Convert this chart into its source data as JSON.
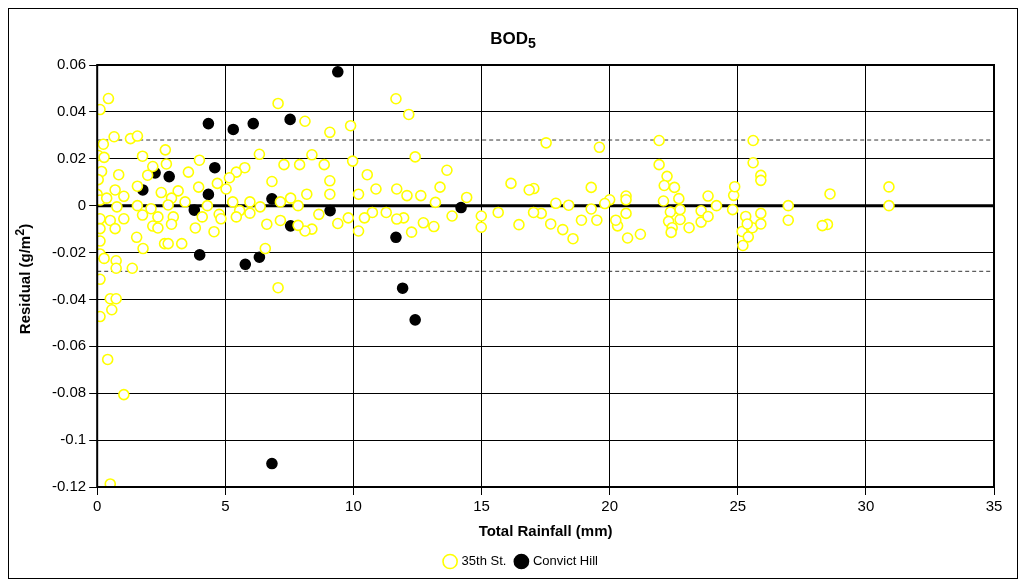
{
  "chart_data": {
    "type": "scatter",
    "title": "BOD$_{5}$",
    "xlabel": "Total Rainfall (mm)",
    "ylabel": "Residual (g/m$^{2}$)",
    "xlim": [
      0,
      35
    ],
    "xticks": [
      0,
      5,
      10,
      15,
      20,
      25,
      30,
      35
    ],
    "ylim": [
      -0.12,
      0.06
    ],
    "yticks": [
      -0.12,
      -0.1,
      -0.08,
      -0.06,
      -0.04,
      -0.02,
      0,
      0.02,
      0.04,
      0.06
    ],
    "grid": true,
    "legend": "bottom",
    "marker": "circle",
    "ref_lines": [
      {
        "axis": "y",
        "value": 0,
        "color": "#000000",
        "line_style": "solid"
      },
      {
        "axis": "y",
        "value": 0.028,
        "color": "#000000",
        "line_style": "dashed"
      },
      {
        "axis": "y",
        "value": -0.028,
        "color": "#000000",
        "line_style": "dashed"
      }
    ],
    "series": [
      {
        "name": "35th St.",
        "color": "#ffff00",
        "x": [
          17.52,
          19.6,
          21.93,
          21.93,
          22.24,
          22.13,
          22.53,
          22.7,
          22.1,
          22.37,
          22.3,
          22.44,
          22.4,
          22.75,
          22.75,
          23.1,
          23.57,
          23.57,
          23.84,
          23.84,
          24.17,
          24.8,
          24.84,
          24.88,
          25.31,
          25.17,
          25.2,
          25.41,
          25.57,
          25.37,
          25.6,
          25.6,
          25.9,
          25.9,
          25.9,
          25.9,
          20,
          20.64,
          20.64,
          20.64,
          20.31,
          20.24,
          20.7,
          21.2,
          19.81,
          19.5,
          19.28,
          19.28,
          18.9,
          18.57,
          18.17,
          18.4,
          17.9,
          17.7,
          17.33,
          17.04,
          26.97,
          26.97,
          28.5,
          28.3,
          28.6,
          30.9,
          30.9,
          11.66,
          12.16,
          8.11,
          9.08,
          9.89,
          12.41,
          9.97,
          8.38,
          10.54,
          13.65,
          13.38,
          16.15,
          16.86,
          9.08,
          9.08,
          10.88,
          10.2,
          11.69,
          12.09,
          12.63,
          13.2,
          14.42,
          13.85,
          14.99,
          14.99,
          15.65,
          16.46,
          17.03,
          13.14,
          12.73,
          12.27,
          11.96,
          11.69,
          10.74,
          10.43,
          10.2,
          9.8,
          9.39,
          8.38,
          8.11,
          7.84,
          8.65,
          7.9,
          8.86,
          7.84,
          8.18,
          11.28,
          7.06,
          0.44,
          0.11,
          7.06,
          0.66,
          0.24,
          1.3,
          1.57,
          1.77,
          2.66,
          0.04,
          0.27,
          6.33,
          7.29,
          0.17,
          0.84,
          3.99,
          2.17,
          2.7,
          3.56,
          5.76,
          5.43,
          5.16,
          0.04,
          1.97,
          5.03,
          6.82,
          0,
          0.7,
          1.57,
          3.16,
          3.96,
          4.69,
          0.11,
          0.37,
          1.04,
          2.5,
          2.9,
          3.43,
          4.3,
          5.29,
          5.96,
          7.55,
          0.77,
          1.57,
          2.1,
          2.77,
          4.76,
          5.56,
          6.36,
          7.15,
          0.11,
          0.51,
          1.04,
          1.77,
          2.37,
          2.97,
          4.1,
          4.83,
          5.43,
          5.96,
          6.62,
          0.11,
          0.7,
          2.17,
          2.9,
          3.83,
          4.56,
          7.15,
          0.11,
          2.37,
          1.54,
          1.79,
          2.63,
          2.77,
          3.3,
          6.56,
          0.11,
          0.27,
          0.74,
          0.74,
          1.37,
          0.11,
          0.51,
          0.74,
          0.57,
          0.11,
          0.41,
          1.04,
          0.51
        ],
        "values": [
          0.0268,
          0.0249,
          0.0278,
          0.0175,
          0.0125,
          0.0086,
          0.0078,
          0.003,
          0.002,
          -0.0027,
          -0.0067,
          -0.0094,
          -0.0114,
          -0.0059,
          -0.0017,
          -0.0094,
          -0.0022,
          -0.007,
          0.0041,
          -0.0046,
          0,
          -0.0017,
          0.0044,
          0.0081,
          -0.0046,
          -0.011,
          -0.017,
          -0.0133,
          -0.0094,
          -0.0078,
          0.0278,
          0.0183,
          0.0129,
          0.0108,
          -0.0033,
          -0.0078,
          0.0025,
          0.0041,
          0.0025,
          -0.0033,
          -0.0086,
          -0.0062,
          -0.0138,
          -0.0122,
          0.0009,
          -0.0062,
          0.0078,
          -0.0014,
          -0.0062,
          -0.0141,
          -0.0102,
          0.0002,
          0.001,
          -0.0078,
          -0.0033,
          0.0073,
          0,
          -0.0062,
          -0.008,
          -0.0085,
          0.005,
          0.008,
          0,
          0.0456,
          0.0389,
          0.036,
          0.0313,
          0.0341,
          0.0208,
          0.019,
          0.0217,
          0.0132,
          0.0151,
          0.0079,
          0.0095,
          0.0067,
          0.0106,
          0.0049,
          0.0071,
          0.0049,
          0.0071,
          0.0043,
          0.0043,
          0.0014,
          0.0035,
          -0.0044,
          -0.0092,
          -0.0044,
          -0.0029,
          -0.0081,
          -0.0029,
          -0.0089,
          -0.0073,
          -0.0113,
          -0.0052,
          -0.0057,
          -0.0029,
          -0.0052,
          -0.0108,
          -0.0052,
          -0.0076,
          -0.01,
          -0.0108,
          -0.0084,
          -0.0037,
          0.0175,
          0.0175,
          0,
          0.0049,
          -0.0029,
          -0.035,
          0.0457,
          0.041,
          0.0436,
          0.0294,
          0.0262,
          0.0286,
          0.0297,
          0.0211,
          0.0238,
          0.0214,
          0.0206,
          0.0219,
          0.0175,
          0.0146,
          0.0132,
          0.0194,
          0.0167,
          0.0178,
          0.0143,
          0.0162,
          0.0143,
          0.0119,
          0.0111,
          0.013,
          0.0071,
          0.0103,
          0.0048,
          0.0067,
          0.0083,
          0.0063,
          0.0079,
          0.0095,
          0.0024,
          0.0032,
          0.004,
          0.0056,
          0.0032,
          0.0016,
          0,
          0.0016,
          0.0016,
          0.0032,
          -0.0005,
          0,
          -0.0013,
          0.0003,
          -0.0037,
          -0.0021,
          -0.0005,
          0.0016,
          -0.0056,
          -0.0063,
          -0.0056,
          -0.004,
          -0.0048,
          -0.0048,
          -0.0048,
          -0.0056,
          -0.0048,
          -0.0032,
          -0.0079,
          -0.0098,
          -0.0098,
          -0.0087,
          -0.0079,
          -0.0095,
          -0.0111,
          -0.0063,
          -0.0151,
          -0.0095,
          -0.0135,
          -0.0183,
          -0.0162,
          -0.0162,
          -0.0162,
          -0.0183,
          -0.0206,
          -0.0225,
          -0.0235,
          -0.0267,
          -0.0267,
          -0.0314,
          -0.0397,
          -0.0397,
          -0.0444,
          -0.0473,
          -0.0656,
          -0.0806,
          -0.1187
        ]
      },
      {
        "name": "Convict Hill",
        "color": "#000000",
        "x": [
          4.34,
          5.31,
          6.09,
          7.53,
          2.26,
          2.81,
          4.59,
          1.78,
          4.34,
          3.79,
          6.82,
          7.55,
          4.0,
          5.78,
          6.33,
          6.82,
          9.39,
          9.09,
          11.66,
          11.92,
          12.41,
          14.2
        ],
        "values": [
          0.035,
          0.0325,
          0.035,
          0.0368,
          0.014,
          0.0124,
          0.0162,
          0.0067,
          0.0048,
          -0.0019,
          0.0029,
          -0.0086,
          -0.021,
          -0.025,
          -0.022,
          -0.11,
          0.0571,
          -0.0021,
          -0.0135,
          -0.0352,
          -0.0487,
          -0.0008
        ]
      }
    ]
  }
}
